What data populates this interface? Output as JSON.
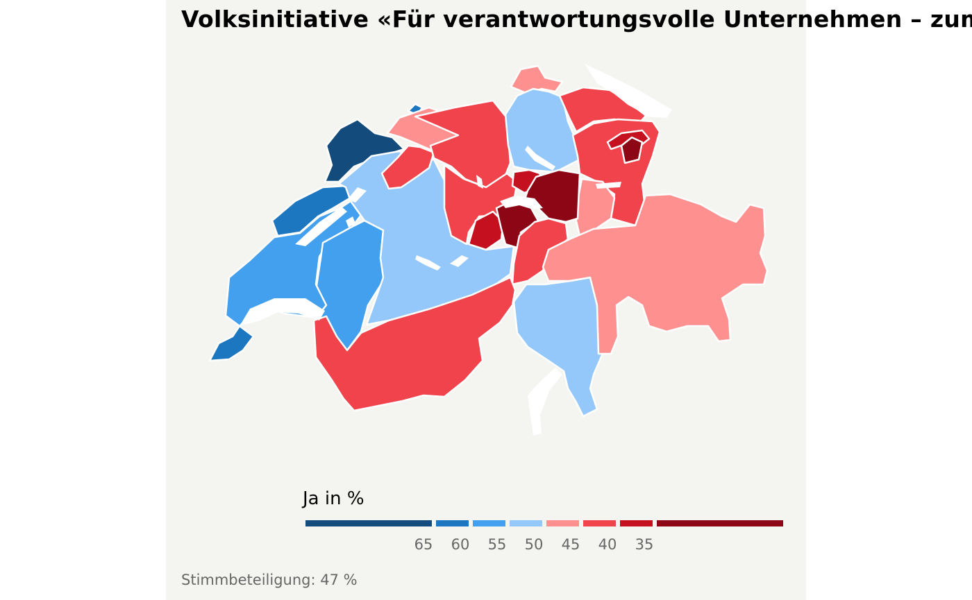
{
  "title": "Volksinitiative «Für verantwortungsvolle Unternehmen – zum Schutz von Mensch und Umwelt»",
  "legend": {
    "title": "Ja in %",
    "ticks": [
      "65",
      "60",
      "55",
      "50",
      "45",
      "40",
      "35"
    ],
    "colors": [
      "#134b7c",
      "#1c77c0",
      "#42a0ee",
      "#94c8fb",
      "#ff9090",
      "#f0434b",
      "#c4101f",
      "#8c0616"
    ]
  },
  "caption": "Stimmbeteiligung: 47 %",
  "regions": [
    {
      "name": "jura",
      "color": "#134b7c"
    },
    {
      "name": "neuchatel",
      "color": "#1c77c0"
    },
    {
      "name": "geneve",
      "color": "#1c77c0"
    },
    {
      "name": "vaud",
      "color": "#42a0ee"
    },
    {
      "name": "fribourg",
      "color": "#42a0ee"
    },
    {
      "name": "bern",
      "color": "#94c8fb"
    },
    {
      "name": "zurich",
      "color": "#94c8fb"
    },
    {
      "name": "ticino",
      "color": "#94c8fb"
    },
    {
      "name": "basel-stadt",
      "color": "#1c77c0"
    },
    {
      "name": "basel-landschaft",
      "color": "#ff9090"
    },
    {
      "name": "schaffhausen",
      "color": "#ff9090"
    },
    {
      "name": "graubunden",
      "color": "#ff9090"
    },
    {
      "name": "glarus",
      "color": "#ff9090"
    },
    {
      "name": "solothurn",
      "color": "#f0434b"
    },
    {
      "name": "aargau",
      "color": "#f0434b"
    },
    {
      "name": "luzern",
      "color": "#f0434b"
    },
    {
      "name": "thurgau",
      "color": "#f0434b"
    },
    {
      "name": "st-gallen",
      "color": "#f0434b"
    },
    {
      "name": "valais",
      "color": "#f0434b"
    },
    {
      "name": "uri",
      "color": "#f0434b"
    },
    {
      "name": "obwalden",
      "color": "#c4101f"
    },
    {
      "name": "zug",
      "color": "#c4101f"
    },
    {
      "name": "appenzell-ausserrhoden",
      "color": "#c4101f"
    },
    {
      "name": "nidwalden",
      "color": "#8c0616"
    },
    {
      "name": "schwyz",
      "color": "#8c0616"
    },
    {
      "name": "appenzell-innerrhoden",
      "color": "#8c0616"
    }
  ]
}
